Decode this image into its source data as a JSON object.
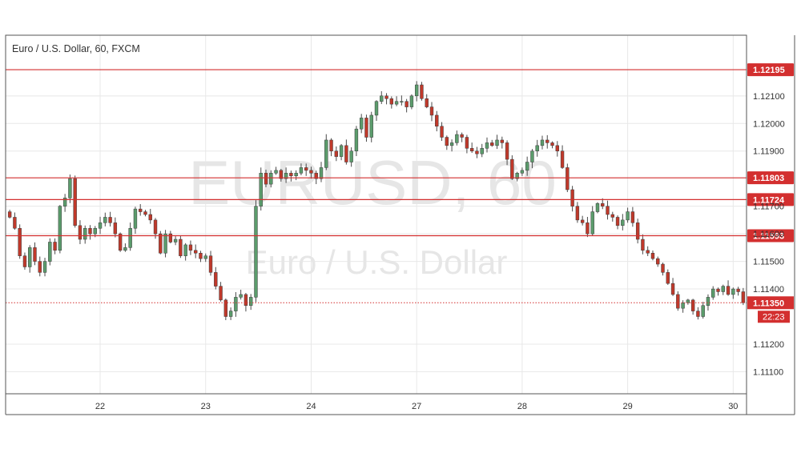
{
  "chart_data": {
    "type": "candlestick",
    "title": "Euro / U.S. Dollar, 60, FXCM",
    "watermark": {
      "symbol": "EURUSD, 60",
      "name": "Euro / U.S. Dollar"
    },
    "x_ticks": [
      {
        "label": "22",
        "bar": 18
      },
      {
        "label": "23",
        "bar": 39
      },
      {
        "label": "24",
        "bar": 60
      },
      {
        "label": "27",
        "bar": 81
      },
      {
        "label": "28",
        "bar": 102
      },
      {
        "label": "29",
        "bar": 123
      },
      {
        "label": "30",
        "bar": 144
      }
    ],
    "y_ticks": [
      "1.12100",
      "1.12000",
      "1.11900",
      "1.11700",
      "1.11600",
      "1.11500",
      "1.11400",
      "1.11200",
      "1.11100"
    ],
    "ylim": [
      1.1102,
      1.1232
    ],
    "levels": [
      {
        "label": "1.12195",
        "value": 1.12195
      },
      {
        "label": "1.11803",
        "value": 1.11803
      },
      {
        "label": "1.11724",
        "value": 1.11724
      },
      {
        "label": "1.11593",
        "value": 1.11593
      }
    ],
    "last_price": {
      "label": "1.11350",
      "value": 1.1135
    },
    "countdown": "22:23",
    "colors": {
      "up": "#5b9c6c",
      "down": "#c0392b",
      "level": "#d32f2f",
      "grid": "#e8e8e8",
      "axis_text": "#333333"
    },
    "closes": [
      1.1166,
      1.1162,
      1.1152,
      1.1148,
      1.1155,
      1.115,
      1.1146,
      1.115,
      1.1157,
      1.1154,
      1.117,
      1.1173,
      1.118,
      1.1163,
      1.1158,
      1.1162,
      1.116,
      1.1162,
      1.1164,
      1.1166,
      1.1164,
      1.116,
      1.1154,
      1.1155,
      1.1162,
      1.1169,
      1.1168,
      1.1167,
      1.1165,
      1.116,
      1.1153,
      1.116,
      1.1157,
      1.1158,
      1.1152,
      1.1156,
      1.1154,
      1.1153,
      1.1151,
      1.1152,
      1.1146,
      1.1141,
      1.1136,
      1.113,
      1.1132,
      1.1137,
      1.1138,
      1.1134,
      1.1137,
      1.117,
      1.1182,
      1.1178,
      1.1182,
      1.1183,
      1.118,
      1.1182,
      1.1181,
      1.1182,
      1.1184,
      1.1183,
      1.1182,
      1.118,
      1.1184,
      1.1194,
      1.119,
      1.1188,
      1.1192,
      1.1186,
      1.119,
      1.1198,
      1.1202,
      1.1195,
      1.1203,
      1.1208,
      1.121,
      1.1209,
      1.1207,
      1.1208,
      1.1208,
      1.1206,
      1.121,
      1.1214,
      1.1209,
      1.1206,
      1.1203,
      1.1199,
      1.1195,
      1.1192,
      1.1193,
      1.1196,
      1.1195,
      1.1191,
      1.119,
      1.1189,
      1.1191,
      1.1193,
      1.1192,
      1.1194,
      1.1193,
      1.1187,
      1.118,
      1.1182,
      1.1183,
      1.1186,
      1.119,
      1.1192,
      1.1194,
      1.1193,
      1.1192,
      1.119,
      1.1184,
      1.1176,
      1.117,
      1.1165,
      1.1164,
      1.116,
      1.1168,
      1.1171,
      1.117,
      1.1167,
      1.1166,
      1.1163,
      1.1165,
      1.1168,
      1.1164,
      1.1158,
      1.1154,
      1.1153,
      1.1151,
      1.1149,
      1.1146,
      1.1142,
      1.1138,
      1.1133,
      1.1135,
      1.1136,
      1.1132,
      1.113,
      1.1134,
      1.1137,
      1.114,
      1.1139,
      1.1141,
      1.1138,
      1.114,
      1.1139,
      1.1135
    ]
  }
}
